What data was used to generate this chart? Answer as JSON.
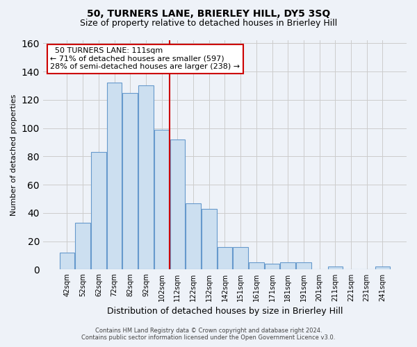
{
  "title": "50, TURNERS LANE, BRIERLEY HILL, DY5 3SQ",
  "subtitle": "Size of property relative to detached houses in Brierley Hill",
  "xlabel": "Distribution of detached houses by size in Brierley Hill",
  "ylabel": "Number of detached properties",
  "bar_labels": [
    "42sqm",
    "52sqm",
    "62sqm",
    "72sqm",
    "82sqm",
    "92sqm",
    "102sqm",
    "112sqm",
    "122sqm",
    "132sqm",
    "142sqm",
    "151sqm",
    "161sqm",
    "171sqm",
    "181sqm",
    "191sqm",
    "201sqm",
    "211sqm",
    "221sqm",
    "231sqm",
    "241sqm"
  ],
  "bar_values": [
    12,
    33,
    83,
    132,
    125,
    130,
    99,
    92,
    47,
    43,
    16,
    16,
    5,
    4,
    5,
    5,
    0,
    2,
    0,
    0,
    2
  ],
  "bar_color": "#ccdff0",
  "bar_edgecolor": "#6699cc",
  "annotation_line1": "  50 TURNERS LANE: 111sqm  ",
  "annotation_line2": "← 71% of detached houses are smaller (597)",
  "annotation_line3": "28% of semi-detached houses are larger (238) →",
  "annotation_box_color": "#ffffff",
  "annotation_box_edgecolor": "#cc0000",
  "vline_color": "#cc0000",
  "grid_color": "#cccccc",
  "ylim": [
    0,
    162
  ],
  "yticks": [
    0,
    20,
    40,
    60,
    80,
    100,
    120,
    140,
    160
  ],
  "footer_line1": "Contains HM Land Registry data © Crown copyright and database right 2024.",
  "footer_line2": "Contains public sector information licensed under the Open Government Licence v3.0.",
  "bg_color": "#eef2f8",
  "title_fontsize": 10,
  "subtitle_fontsize": 9,
  "annotation_fontsize": 8,
  "ylabel_fontsize": 8,
  "xlabel_fontsize": 9
}
